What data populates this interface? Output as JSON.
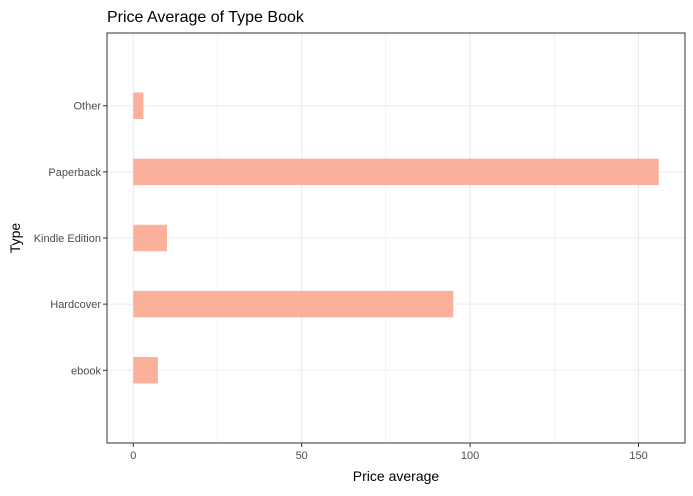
{
  "chart_data": {
    "type": "bar",
    "orientation": "horizontal",
    "title": "Price Average of Type Book",
    "xlabel": "Price average",
    "ylabel": "Type",
    "categories": [
      "ebook",
      "Hardcover",
      "Kindle Edition",
      "Paperback",
      "Other"
    ],
    "values": [
      7.3,
      95,
      10,
      156,
      3
    ],
    "xlim": [
      -7.8,
      163.8
    ],
    "x_ticks": [
      0,
      50,
      100,
      150
    ],
    "grid": true,
    "legend": "none",
    "bar_color": "#FBB09C",
    "grid_color": "#EBEBEB",
    "axis_text_color": "#4D4D4D"
  }
}
